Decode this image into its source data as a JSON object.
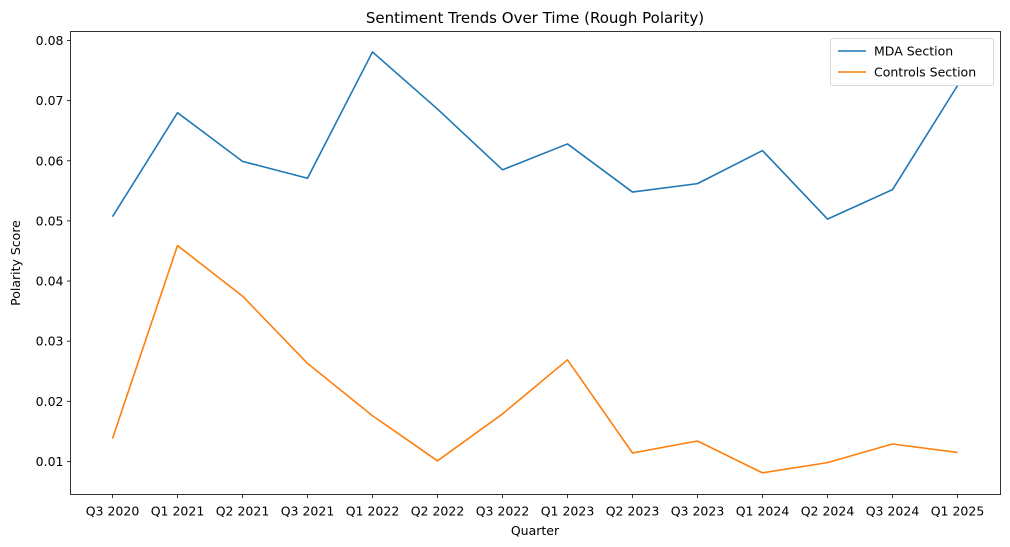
{
  "chart_data": {
    "type": "line",
    "title": "Sentiment Trends Over Time (Rough Polarity)",
    "xlabel": "Quarter",
    "ylabel": "Polarity Score",
    "categories": [
      "Q3 2020",
      "Q1 2021",
      "Q2 2021",
      "Q3 2021",
      "Q1 2022",
      "Q2 2022",
      "Q3 2022",
      "Q1 2023",
      "Q2 2023",
      "Q3 2023",
      "Q1 2024",
      "Q2 2024",
      "Q3 2024",
      "Q1 2025"
    ],
    "ylim": [
      0.0045,
      0.0815
    ],
    "yticks": [
      0.01,
      0.02,
      0.03,
      0.04,
      0.05,
      0.06,
      0.07,
      0.08
    ],
    "yticklabels": [
      "0.01",
      "0.02",
      "0.03",
      "0.04",
      "0.05",
      "0.06",
      "0.07",
      "0.08"
    ],
    "grid": false,
    "legend_position": "top-right",
    "series": [
      {
        "name": "MDA Section",
        "color": "#1f77b4",
        "values": [
          0.0507,
          0.068,
          0.0599,
          0.0571,
          0.0781,
          0.0686,
          0.0585,
          0.0628,
          0.0548,
          0.0562,
          0.0617,
          0.0503,
          0.0552,
          0.0725
        ]
      },
      {
        "name": "Controls Section",
        "color": "#ff7f0e",
        "values": [
          0.0138,
          0.0459,
          0.0375,
          0.0263,
          0.0176,
          0.0101,
          0.0179,
          0.0269,
          0.0114,
          0.0134,
          0.0081,
          0.0098,
          0.0129,
          0.0115
        ]
      }
    ]
  }
}
